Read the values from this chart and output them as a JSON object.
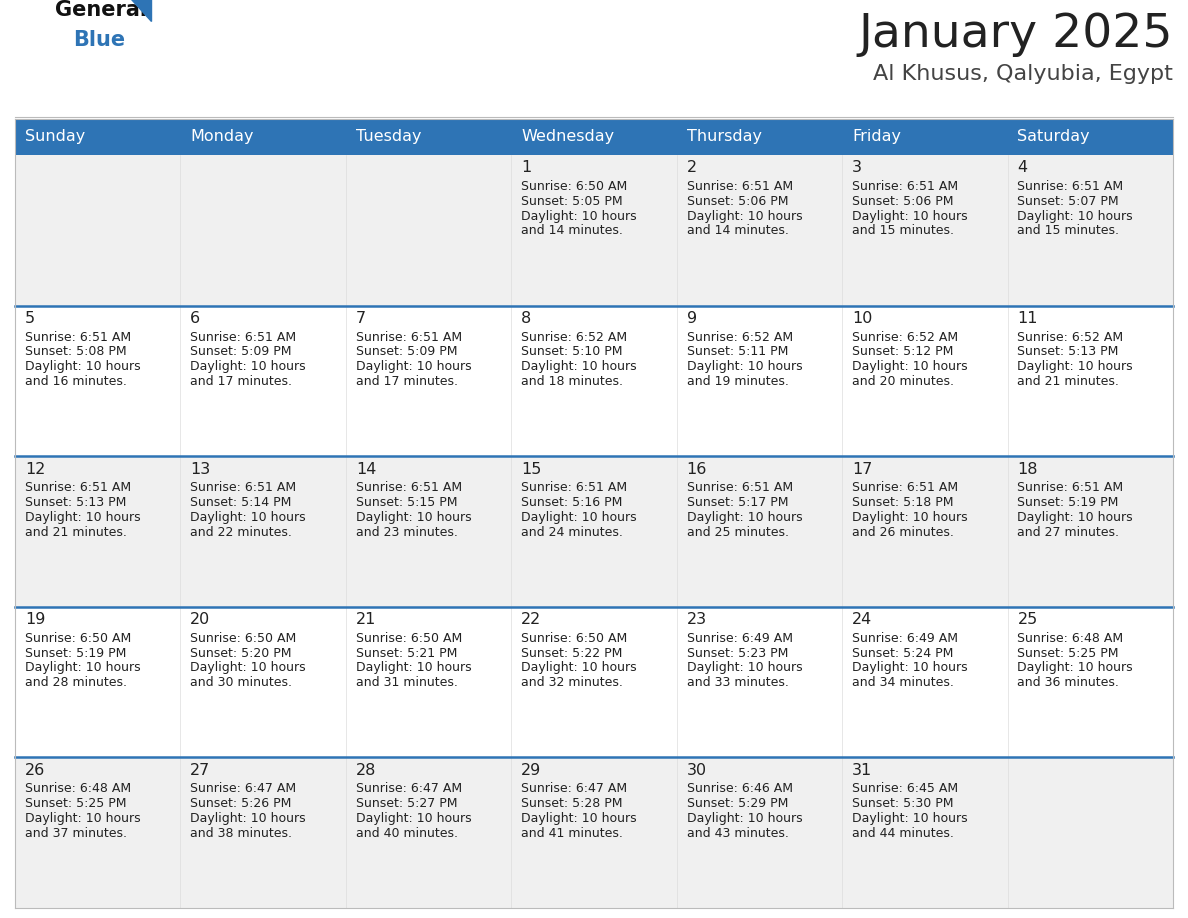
{
  "title": "January 2025",
  "subtitle": "Al Khusus, Qalyubia, Egypt",
  "days_of_week": [
    "Sunday",
    "Monday",
    "Tuesday",
    "Wednesday",
    "Thursday",
    "Friday",
    "Saturday"
  ],
  "header_bg": "#2E74B5",
  "header_text": "#FFFFFF",
  "row_bg_odd": "#F0F0F0",
  "row_bg_even": "#FFFFFF",
  "cell_text_color": "#222222",
  "day_num_color": "#222222",
  "divider_color": "#2E74B5",
  "title_color": "#222222",
  "subtitle_color": "#444444",
  "logo_general_color": "#111111",
  "logo_blue_color": "#2E74B5",
  "calendar_data": [
    [
      {
        "day": null
      },
      {
        "day": null
      },
      {
        "day": null
      },
      {
        "day": 1,
        "sunrise": "6:50 AM",
        "sunset": "5:05 PM",
        "daylight": "10 hours",
        "daylight2": "and 14 minutes."
      },
      {
        "day": 2,
        "sunrise": "6:51 AM",
        "sunset": "5:06 PM",
        "daylight": "10 hours",
        "daylight2": "and 14 minutes."
      },
      {
        "day": 3,
        "sunrise": "6:51 AM",
        "sunset": "5:06 PM",
        "daylight": "10 hours",
        "daylight2": "and 15 minutes."
      },
      {
        "day": 4,
        "sunrise": "6:51 AM",
        "sunset": "5:07 PM",
        "daylight": "10 hours",
        "daylight2": "and 15 minutes."
      }
    ],
    [
      {
        "day": 5,
        "sunrise": "6:51 AM",
        "sunset": "5:08 PM",
        "daylight": "10 hours",
        "daylight2": "and 16 minutes."
      },
      {
        "day": 6,
        "sunrise": "6:51 AM",
        "sunset": "5:09 PM",
        "daylight": "10 hours",
        "daylight2": "and 17 minutes."
      },
      {
        "day": 7,
        "sunrise": "6:51 AM",
        "sunset": "5:09 PM",
        "daylight": "10 hours",
        "daylight2": "and 17 minutes."
      },
      {
        "day": 8,
        "sunrise": "6:52 AM",
        "sunset": "5:10 PM",
        "daylight": "10 hours",
        "daylight2": "and 18 minutes."
      },
      {
        "day": 9,
        "sunrise": "6:52 AM",
        "sunset": "5:11 PM",
        "daylight": "10 hours",
        "daylight2": "and 19 minutes."
      },
      {
        "day": 10,
        "sunrise": "6:52 AM",
        "sunset": "5:12 PM",
        "daylight": "10 hours",
        "daylight2": "and 20 minutes."
      },
      {
        "day": 11,
        "sunrise": "6:52 AM",
        "sunset": "5:13 PM",
        "daylight": "10 hours",
        "daylight2": "and 21 minutes."
      }
    ],
    [
      {
        "day": 12,
        "sunrise": "6:51 AM",
        "sunset": "5:13 PM",
        "daylight": "10 hours",
        "daylight2": "and 21 minutes."
      },
      {
        "day": 13,
        "sunrise": "6:51 AM",
        "sunset": "5:14 PM",
        "daylight": "10 hours",
        "daylight2": "and 22 minutes."
      },
      {
        "day": 14,
        "sunrise": "6:51 AM",
        "sunset": "5:15 PM",
        "daylight": "10 hours",
        "daylight2": "and 23 minutes."
      },
      {
        "day": 15,
        "sunrise": "6:51 AM",
        "sunset": "5:16 PM",
        "daylight": "10 hours",
        "daylight2": "and 24 minutes."
      },
      {
        "day": 16,
        "sunrise": "6:51 AM",
        "sunset": "5:17 PM",
        "daylight": "10 hours",
        "daylight2": "and 25 minutes."
      },
      {
        "day": 17,
        "sunrise": "6:51 AM",
        "sunset": "5:18 PM",
        "daylight": "10 hours",
        "daylight2": "and 26 minutes."
      },
      {
        "day": 18,
        "sunrise": "6:51 AM",
        "sunset": "5:19 PM",
        "daylight": "10 hours",
        "daylight2": "and 27 minutes."
      }
    ],
    [
      {
        "day": 19,
        "sunrise": "6:50 AM",
        "sunset": "5:19 PM",
        "daylight": "10 hours",
        "daylight2": "and 28 minutes."
      },
      {
        "day": 20,
        "sunrise": "6:50 AM",
        "sunset": "5:20 PM",
        "daylight": "10 hours",
        "daylight2": "and 30 minutes."
      },
      {
        "day": 21,
        "sunrise": "6:50 AM",
        "sunset": "5:21 PM",
        "daylight": "10 hours",
        "daylight2": "and 31 minutes."
      },
      {
        "day": 22,
        "sunrise": "6:50 AM",
        "sunset": "5:22 PM",
        "daylight": "10 hours",
        "daylight2": "and 32 minutes."
      },
      {
        "day": 23,
        "sunrise": "6:49 AM",
        "sunset": "5:23 PM",
        "daylight": "10 hours",
        "daylight2": "and 33 minutes."
      },
      {
        "day": 24,
        "sunrise": "6:49 AM",
        "sunset": "5:24 PM",
        "daylight": "10 hours",
        "daylight2": "and 34 minutes."
      },
      {
        "day": 25,
        "sunrise": "6:48 AM",
        "sunset": "5:25 PM",
        "daylight": "10 hours",
        "daylight2": "and 36 minutes."
      }
    ],
    [
      {
        "day": 26,
        "sunrise": "6:48 AM",
        "sunset": "5:25 PM",
        "daylight": "10 hours",
        "daylight2": "and 37 minutes."
      },
      {
        "day": 27,
        "sunrise": "6:47 AM",
        "sunset": "5:26 PM",
        "daylight": "10 hours",
        "daylight2": "and 38 minutes."
      },
      {
        "day": 28,
        "sunrise": "6:47 AM",
        "sunset": "5:27 PM",
        "daylight": "10 hours",
        "daylight2": "and 40 minutes."
      },
      {
        "day": 29,
        "sunrise": "6:47 AM",
        "sunset": "5:28 PM",
        "daylight": "10 hours",
        "daylight2": "and 41 minutes."
      },
      {
        "day": 30,
        "sunrise": "6:46 AM",
        "sunset": "5:29 PM",
        "daylight": "10 hours",
        "daylight2": "and 43 minutes."
      },
      {
        "day": 31,
        "sunrise": "6:45 AM",
        "sunset": "5:30 PM",
        "daylight": "10 hours",
        "daylight2": "and 44 minutes."
      },
      {
        "day": null
      }
    ]
  ]
}
